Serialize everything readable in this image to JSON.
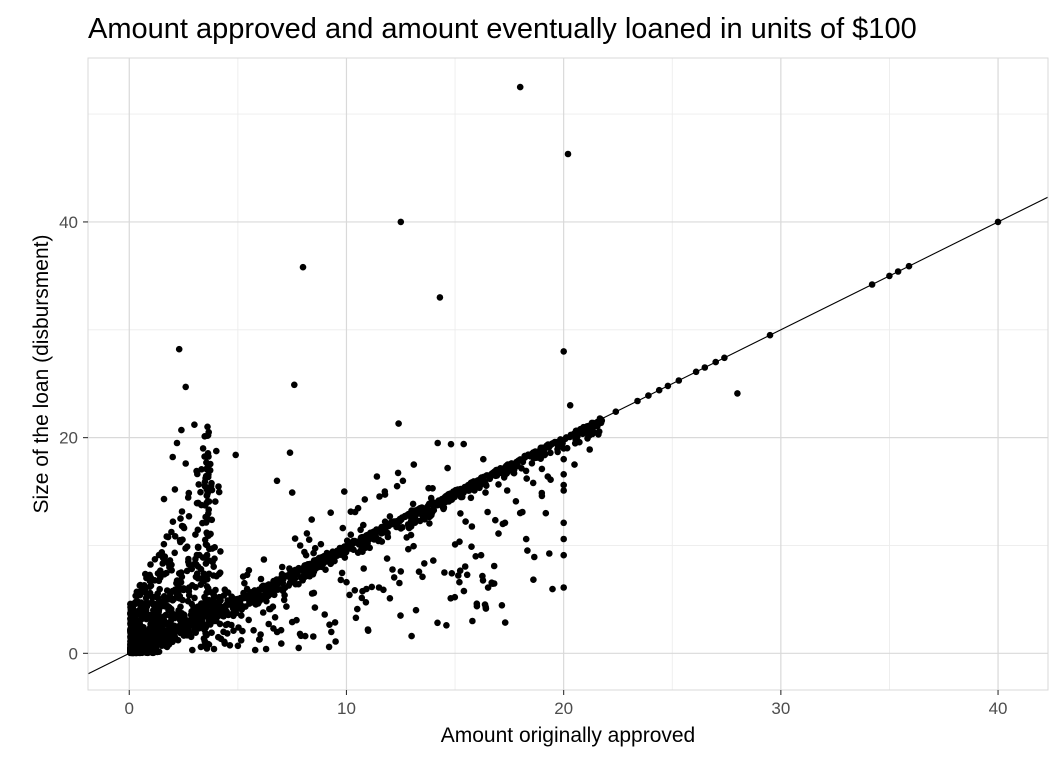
{
  "chart_data": {
    "type": "scatter",
    "title": "Amount approved and amount eventually loaned in units of $100",
    "xlabel": "Amount originally approved",
    "ylabel": "Size of the loan (disbursment)",
    "xlim": [
      -1.9,
      42.3
    ],
    "ylim": [
      -3.4,
      55.2
    ],
    "x_ticks": [
      0,
      10,
      20,
      30,
      40
    ],
    "y_ticks": [
      0,
      20,
      40
    ],
    "x_minor_ticks": [
      5,
      15,
      25,
      35
    ],
    "y_minor_ticks": [
      10,
      30,
      50
    ],
    "grid": true,
    "legend": null,
    "reference_line": {
      "slope": 1,
      "intercept": 0
    },
    "point_radius": 3.3,
    "outlier_points": [
      [
        18.0,
        52.5
      ],
      [
        20.2,
        46.3
      ],
      [
        12.5,
        40.0
      ],
      [
        8.0,
        35.8
      ],
      [
        14.3,
        33.0
      ],
      [
        2.3,
        28.2
      ],
      [
        20.0,
        28.0
      ],
      [
        7.6,
        24.9
      ],
      [
        2.6,
        24.7
      ],
      [
        20.3,
        23.0
      ],
      [
        12.4,
        21.3
      ],
      [
        3.0,
        21.2
      ],
      [
        3.6,
        21.0
      ],
      [
        2.4,
        20.7
      ],
      [
        2.2,
        19.5
      ],
      [
        3.4,
        19.0
      ],
      [
        2.0,
        18.2
      ],
      [
        4.9,
        18.4
      ],
      [
        7.4,
        18.6
      ],
      [
        2.6,
        17.6
      ],
      [
        3.1,
        16.9
      ],
      [
        6.8,
        16.0
      ],
      [
        2.1,
        15.2
      ],
      [
        1.6,
        14.3
      ],
      [
        7.5,
        14.9
      ],
      [
        9.9,
        15.0
      ],
      [
        11.4,
        16.4
      ],
      [
        12.6,
        16.0
      ],
      [
        13.1,
        17.5
      ],
      [
        14.2,
        19.5
      ],
      [
        15.4,
        19.4
      ],
      [
        16.3,
        18.0
      ],
      [
        13.9,
        14.4
      ],
      [
        10.4,
        13.1
      ],
      [
        12.0,
        12.7
      ],
      [
        8.4,
        12.4
      ],
      [
        10.2,
        11.0
      ],
      [
        9.1,
        9.3
      ],
      [
        6.2,
        8.7
      ],
      [
        5.3,
        6.5
      ],
      [
        4.4,
        5.9
      ],
      [
        3.9,
        5.2
      ],
      [
        20.0,
        19.0
      ],
      [
        20.0,
        18.0
      ],
      [
        20.0,
        16.6
      ],
      [
        20.0,
        15.6
      ],
      [
        20.0,
        15.1
      ],
      [
        20.0,
        12.1
      ],
      [
        20.0,
        10.6
      ],
      [
        20.0,
        9.1
      ],
      [
        20.0,
        6.1
      ],
      [
        19.0,
        17.1
      ],
      [
        18.3,
        16.2
      ],
      [
        17.4,
        15.1
      ],
      [
        16.5,
        13.1
      ],
      [
        18.0,
        13.0
      ],
      [
        17.2,
        12.0
      ],
      [
        28.0,
        24.1
      ]
    ],
    "diagonal_sparse_points": [
      [
        22.4,
        22.4
      ],
      [
        23.4,
        23.4
      ],
      [
        23.9,
        23.9
      ],
      [
        24.4,
        24.4
      ],
      [
        24.8,
        24.8
      ],
      [
        25.3,
        25.3
      ],
      [
        26.1,
        26.1
      ],
      [
        26.5,
        26.5
      ],
      [
        27.0,
        27.0
      ],
      [
        27.4,
        27.4
      ],
      [
        29.5,
        29.5
      ],
      [
        34.2,
        34.2
      ],
      [
        35.0,
        35.0
      ],
      [
        35.4,
        35.4
      ],
      [
        35.9,
        35.9
      ],
      [
        40.0,
        40.0
      ]
    ],
    "below_line_points": [
      [
        15.8,
        3.0
      ],
      [
        16.0,
        4.6
      ],
      [
        14.6,
        2.6
      ],
      [
        13.0,
        1.6
      ],
      [
        11.0,
        2.1
      ],
      [
        9.5,
        1.1
      ],
      [
        8.1,
        1.6
      ],
      [
        7.0,
        0.9
      ],
      [
        6.0,
        1.3
      ],
      [
        5.0,
        0.7
      ],
      [
        10.5,
        4.1
      ],
      [
        12.0,
        5.1
      ],
      [
        9.0,
        3.6
      ],
      [
        7.5,
        2.9
      ],
      [
        6.5,
        4.1
      ],
      [
        5.5,
        3.1
      ],
      [
        4.8,
        2.1
      ],
      [
        13.5,
        7.1
      ],
      [
        14.0,
        8.6
      ],
      [
        12.5,
        7.6
      ],
      [
        11.5,
        6.1
      ],
      [
        10.0,
        6.6
      ],
      [
        8.5,
        5.6
      ],
      [
        16.2,
        9.1
      ],
      [
        17.0,
        11.1
      ],
      [
        15.0,
        10.1
      ],
      [
        6.3,
        0.4
      ],
      [
        7.8,
        0.5
      ],
      [
        9.2,
        0.6
      ],
      [
        3.9,
        0.4
      ],
      [
        4.4,
        0.9
      ],
      [
        5.8,
        0.3
      ],
      [
        13.2,
        4.0
      ],
      [
        2.9,
        0.3
      ],
      [
        3.3,
        0.6
      ],
      [
        4.1,
        1.5
      ],
      [
        16.8,
        8.1
      ],
      [
        18.1,
        13.1
      ],
      [
        17.3,
        12.1
      ],
      [
        19.0,
        14.6
      ],
      [
        18.6,
        15.8
      ],
      [
        15.2,
        6.6
      ],
      [
        14.8,
        5.1
      ],
      [
        16.4,
        14.9
      ],
      [
        17.8,
        14.1
      ],
      [
        19.4,
        16.1
      ],
      [
        20.5,
        17.5
      ],
      [
        21.2,
        18.9
      ],
      [
        21.6,
        20.3
      ]
    ],
    "dense_clusters": [
      {
        "mode": "wedge",
        "n": 720,
        "x_min": 0.05,
        "x_max": 4.2,
        "x_pow": 2.0,
        "ymax0": 4.5,
        "slope": 3.9,
        "y_pow": 2.6,
        "seed": 11
      },
      {
        "mode": "band",
        "n": 980,
        "x_min": 0.1,
        "x_max": 21.8,
        "x_pow": 1.5,
        "below_spread": 1.3,
        "jitter": 0.22,
        "seed": 22
      },
      {
        "mode": "vstrip",
        "n": 60,
        "x_center": 3.55,
        "x_jitter": 0.12,
        "y_min": 0.3,
        "y_max": 20.5,
        "seed": 33
      },
      {
        "mode": "ratio-box",
        "n": 115,
        "x_min": 3.5,
        "x_max": 19.5,
        "x_pow": 1.2,
        "r_min": 0.15,
        "r_max": 0.9,
        "seed": 44
      },
      {
        "mode": "ratio-box",
        "n": 48,
        "x_min": 4.0,
        "x_max": 15.0,
        "x_pow": 1.2,
        "r_min": 1.02,
        "r_max": 1.4,
        "seed": 55
      }
    ]
  },
  "colors": {
    "point": "#000000",
    "reference_line": "#000000",
    "grid_major": "#d9d9d9",
    "grid_minor": "#ececec",
    "panel_border": "#d9d9d9",
    "tick_mark": "#333333",
    "tick_label": "#4d4d4d",
    "title": "#000000",
    "axis_title": "#000000",
    "panel_bg": "#ffffff"
  },
  "layout_text": {
    "note": ""
  }
}
